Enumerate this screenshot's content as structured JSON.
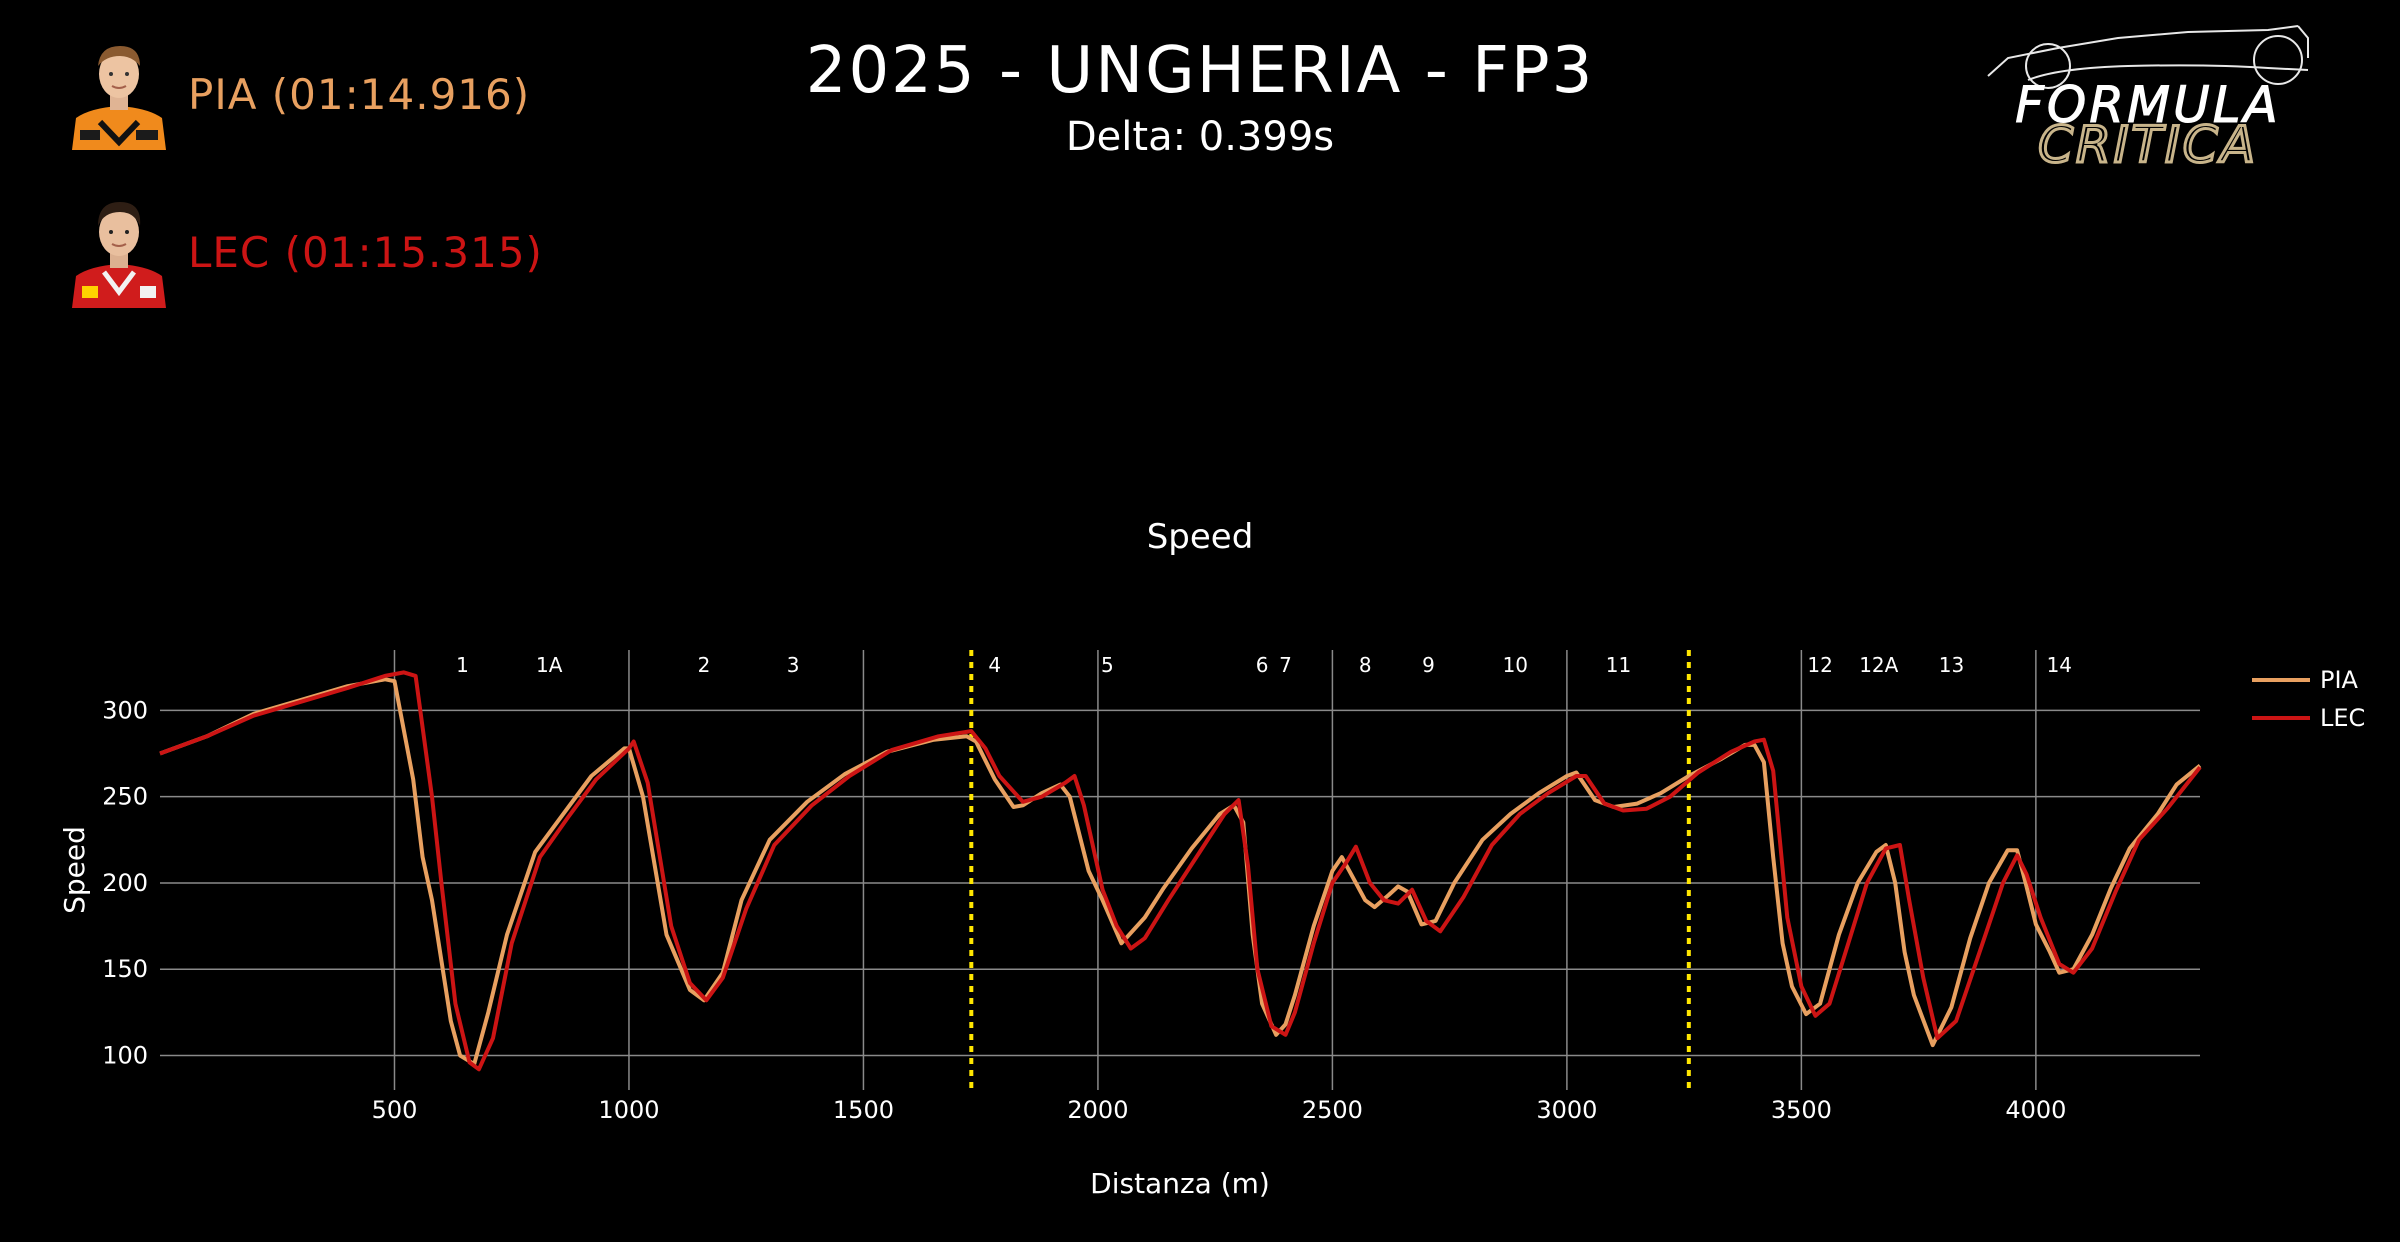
{
  "header": {
    "title": "2025 - UNGHERIA - FP3",
    "subtitle": "Delta: 0.399s"
  },
  "drivers": [
    {
      "code": "PIA",
      "label": "PIA (01:14.916)",
      "color": "#e8a060"
    },
    {
      "code": "LEC",
      "label": "LEC (01:15.315)",
      "color": "#cc1414"
    }
  ],
  "logo": {
    "line1": "FORMULA",
    "line2": "CRITICA",
    "line1_color": "#ffffff",
    "line2_color": "#c8b48a"
  },
  "chart_data": {
    "type": "line",
    "title": "Speed",
    "xlabel": "Distanza (m)",
    "ylabel": "Speed",
    "xlim": [
      0,
      4350
    ],
    "ylim": [
      80,
      335
    ],
    "xticks": [
      500,
      1000,
      1500,
      2000,
      2500,
      3000,
      3500,
      4000
    ],
    "yticks": [
      100,
      150,
      200,
      250,
      300
    ],
    "grid": true,
    "legend": "right",
    "sector_lines": [
      1730,
      3260
    ],
    "corners": [
      {
        "label": "1",
        "x": 645
      },
      {
        "label": "1A",
        "x": 830
      },
      {
        "label": "2",
        "x": 1160
      },
      {
        "label": "3",
        "x": 1350
      },
      {
        "label": "4",
        "x": 1780
      },
      {
        "label": "5",
        "x": 2020
      },
      {
        "label": "6",
        "x": 2350
      },
      {
        "label": "7",
        "x": 2400
      },
      {
        "label": "8",
        "x": 2570
      },
      {
        "label": "9",
        "x": 2705
      },
      {
        "label": "10",
        "x": 2890
      },
      {
        "label": "11",
        "x": 3110
      },
      {
        "label": "12",
        "x": 3540
      },
      {
        "label": "12A",
        "x": 3665
      },
      {
        "label": "13",
        "x": 3820
      },
      {
        "label": "14",
        "x": 4050
      }
    ],
    "series": [
      {
        "name": "PIA",
        "color": "#e8a060",
        "points": [
          [
            0,
            275
          ],
          [
            100,
            285
          ],
          [
            200,
            298
          ],
          [
            300,
            306
          ],
          [
            400,
            314
          ],
          [
            480,
            318
          ],
          [
            500,
            317
          ],
          [
            540,
            260
          ],
          [
            560,
            215
          ],
          [
            580,
            190
          ],
          [
            620,
            120
          ],
          [
            640,
            100
          ],
          [
            670,
            95
          ],
          [
            700,
            125
          ],
          [
            740,
            170
          ],
          [
            800,
            218
          ],
          [
            860,
            240
          ],
          [
            920,
            262
          ],
          [
            990,
            278
          ],
          [
            1000,
            278
          ],
          [
            1030,
            250
          ],
          [
            1080,
            170
          ],
          [
            1130,
            138
          ],
          [
            1160,
            132
          ],
          [
            1200,
            148
          ],
          [
            1240,
            190
          ],
          [
            1300,
            225
          ],
          [
            1380,
            247
          ],
          [
            1460,
            263
          ],
          [
            1550,
            276
          ],
          [
            1650,
            283
          ],
          [
            1720,
            285
          ],
          [
            1740,
            282
          ],
          [
            1780,
            260
          ],
          [
            1820,
            244
          ],
          [
            1840,
            245
          ],
          [
            1880,
            252
          ],
          [
            1920,
            257
          ],
          [
            1940,
            250
          ],
          [
            1980,
            207
          ],
          [
            2010,
            190
          ],
          [
            2050,
            165
          ],
          [
            2100,
            180
          ],
          [
            2140,
            197
          ],
          [
            2200,
            220
          ],
          [
            2260,
            240
          ],
          [
            2290,
            245
          ],
          [
            2310,
            235
          ],
          [
            2330,
            170
          ],
          [
            2350,
            130
          ],
          [
            2380,
            112
          ],
          [
            2400,
            118
          ],
          [
            2420,
            135
          ],
          [
            2460,
            175
          ],
          [
            2500,
            207
          ],
          [
            2520,
            215
          ],
          [
            2540,
            205
          ],
          [
            2570,
            190
          ],
          [
            2590,
            186
          ],
          [
            2620,
            193
          ],
          [
            2640,
            198
          ],
          [
            2660,
            195
          ],
          [
            2690,
            176
          ],
          [
            2720,
            178
          ],
          [
            2760,
            200
          ],
          [
            2820,
            225
          ],
          [
            2880,
            240
          ],
          [
            2940,
            252
          ],
          [
            3000,
            262
          ],
          [
            3020,
            264
          ],
          [
            3060,
            248
          ],
          [
            3100,
            244
          ],
          [
            3150,
            246
          ],
          [
            3200,
            252
          ],
          [
            3260,
            262
          ],
          [
            3330,
            272
          ],
          [
            3380,
            280
          ],
          [
            3400,
            280
          ],
          [
            3420,
            270
          ],
          [
            3440,
            215
          ],
          [
            3460,
            165
          ],
          [
            3480,
            140
          ],
          [
            3510,
            124
          ],
          [
            3540,
            130
          ],
          [
            3580,
            170
          ],
          [
            3620,
            200
          ],
          [
            3660,
            218
          ],
          [
            3680,
            222
          ],
          [
            3700,
            200
          ],
          [
            3720,
            160
          ],
          [
            3740,
            135
          ],
          [
            3780,
            106
          ],
          [
            3820,
            128
          ],
          [
            3860,
            168
          ],
          [
            3900,
            200
          ],
          [
            3940,
            219
          ],
          [
            3960,
            219
          ],
          [
            3980,
            198
          ],
          [
            4000,
            176
          ],
          [
            4030,
            160
          ],
          [
            4050,
            148
          ],
          [
            4080,
            150
          ],
          [
            4120,
            170
          ],
          [
            4160,
            197
          ],
          [
            4200,
            220
          ],
          [
            4260,
            240
          ],
          [
            4300,
            257
          ],
          [
            4350,
            268
          ]
        ]
      },
      {
        "name": "LEC",
        "color": "#cc1414",
        "points": [
          [
            0,
            275
          ],
          [
            100,
            285
          ],
          [
            200,
            297
          ],
          [
            300,
            305
          ],
          [
            400,
            313
          ],
          [
            480,
            320
          ],
          [
            520,
            322
          ],
          [
            545,
            320
          ],
          [
            580,
            250
          ],
          [
            600,
            200
          ],
          [
            630,
            130
          ],
          [
            660,
            96
          ],
          [
            680,
            92
          ],
          [
            710,
            110
          ],
          [
            750,
            165
          ],
          [
            810,
            215
          ],
          [
            870,
            238
          ],
          [
            930,
            260
          ],
          [
            1000,
            278
          ],
          [
            1010,
            282
          ],
          [
            1040,
            258
          ],
          [
            1090,
            175
          ],
          [
            1130,
            142
          ],
          [
            1165,
            132
          ],
          [
            1200,
            145
          ],
          [
            1250,
            185
          ],
          [
            1310,
            222
          ],
          [
            1390,
            245
          ],
          [
            1470,
            262
          ],
          [
            1560,
            277
          ],
          [
            1660,
            285
          ],
          [
            1730,
            288
          ],
          [
            1760,
            278
          ],
          [
            1790,
            262
          ],
          [
            1840,
            247
          ],
          [
            1880,
            250
          ],
          [
            1930,
            258
          ],
          [
            1950,
            262
          ],
          [
            1970,
            245
          ],
          [
            2010,
            196
          ],
          [
            2040,
            175
          ],
          [
            2070,
            162
          ],
          [
            2100,
            168
          ],
          [
            2150,
            190
          ],
          [
            2210,
            215
          ],
          [
            2270,
            240
          ],
          [
            2300,
            248
          ],
          [
            2320,
            210
          ],
          [
            2340,
            150
          ],
          [
            2370,
            117
          ],
          [
            2400,
            112
          ],
          [
            2420,
            125
          ],
          [
            2460,
            165
          ],
          [
            2500,
            200
          ],
          [
            2530,
            212
          ],
          [
            2550,
            221
          ],
          [
            2580,
            200
          ],
          [
            2610,
            190
          ],
          [
            2640,
            188
          ],
          [
            2670,
            196
          ],
          [
            2700,
            178
          ],
          [
            2730,
            172
          ],
          [
            2780,
            192
          ],
          [
            2840,
            222
          ],
          [
            2900,
            240
          ],
          [
            2960,
            252
          ],
          [
            3020,
            262
          ],
          [
            3040,
            262
          ],
          [
            3080,
            246
          ],
          [
            3120,
            242
          ],
          [
            3170,
            243
          ],
          [
            3220,
            250
          ],
          [
            3280,
            264
          ],
          [
            3350,
            276
          ],
          [
            3400,
            282
          ],
          [
            3420,
            283
          ],
          [
            3440,
            265
          ],
          [
            3470,
            180
          ],
          [
            3500,
            140
          ],
          [
            3530,
            123
          ],
          [
            3560,
            130
          ],
          [
            3600,
            165
          ],
          [
            3640,
            200
          ],
          [
            3680,
            220
          ],
          [
            3710,
            222
          ],
          [
            3730,
            190
          ],
          [
            3760,
            145
          ],
          [
            3790,
            110
          ],
          [
            3830,
            120
          ],
          [
            3880,
            160
          ],
          [
            3930,
            200
          ],
          [
            3960,
            216
          ],
          [
            3980,
            205
          ],
          [
            4010,
            180
          ],
          [
            4050,
            153
          ],
          [
            4080,
            148
          ],
          [
            4120,
            162
          ],
          [
            4170,
            195
          ],
          [
            4220,
            225
          ],
          [
            4280,
            243
          ],
          [
            4350,
            267
          ]
        ]
      }
    ]
  }
}
